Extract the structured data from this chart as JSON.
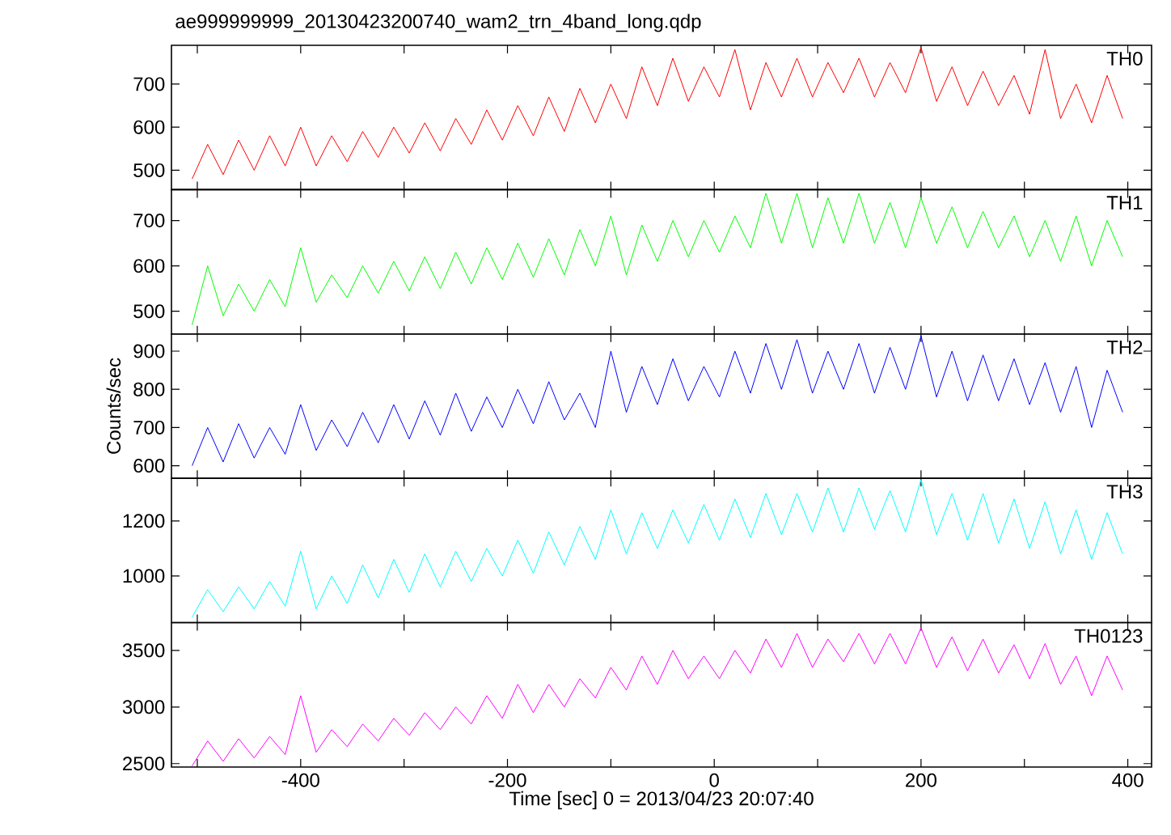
{
  "chart_data": [
    {
      "type": "line",
      "title": "ae999999999_20130423200740_wam2_trn_4band_long.qdp",
      "annotations": [
        "TH0"
      ],
      "tick_labels": "y",
      "xlim": [
        -525,
        423
      ],
      "ylim": [
        455,
        790
      ],
      "xticks": [
        {
          "value": -500,
          "label": null
        },
        {
          "value": -400,
          "label": null
        },
        {
          "value": -300,
          "label": null
        },
        {
          "value": -200,
          "label": null
        },
        {
          "value": -100,
          "label": null
        },
        {
          "value": 0,
          "label": null
        },
        {
          "value": 100,
          "label": null
        },
        {
          "value": 200,
          "label": null
        },
        {
          "value": 300,
          "label": null
        },
        {
          "value": 400,
          "label": null
        }
      ],
      "yticks": [
        500,
        600,
        700
      ],
      "series": [
        {
          "color": "#ff0000",
          "x": [
            -505,
            -490,
            -475,
            -460,
            -445,
            -430,
            -415,
            -400,
            -385,
            -370,
            -355,
            -340,
            -325,
            -310,
            -295,
            -280,
            -265,
            -250,
            -235,
            -220,
            -205,
            -190,
            -175,
            -160,
            -145,
            -130,
            -115,
            -100,
            -85,
            -70,
            -55,
            -40,
            -25,
            -10,
            5,
            20,
            35,
            50,
            65,
            80,
            95,
            110,
            125,
            140,
            155,
            170,
            185,
            200,
            215,
            230,
            245,
            260,
            275,
            290,
            305,
            320,
            335,
            350,
            365,
            380,
            395
          ],
          "values": [
            480,
            560,
            490,
            570,
            500,
            580,
            510,
            600,
            510,
            580,
            520,
            590,
            530,
            600,
            540,
            610,
            545,
            620,
            560,
            640,
            570,
            650,
            580,
            670,
            590,
            690,
            610,
            700,
            620,
            740,
            650,
            760,
            660,
            740,
            670,
            780,
            640,
            750,
            670,
            760,
            670,
            750,
            680,
            760,
            670,
            750,
            680,
            785,
            660,
            740,
            650,
            730,
            650,
            720,
            630,
            780,
            620,
            700,
            610,
            720,
            620
          ]
        }
      ]
    },
    {
      "type": "line",
      "annotations": [
        "TH1"
      ],
      "tick_labels": "y",
      "xlim": [
        -525,
        423
      ],
      "ylim": [
        450,
        768
      ],
      "xticks": [
        {
          "value": -500,
          "label": null
        },
        {
          "value": -400,
          "label": null
        },
        {
          "value": -300,
          "label": null
        },
        {
          "value": -200,
          "label": null
        },
        {
          "value": -100,
          "label": null
        },
        {
          "value": 0,
          "label": null
        },
        {
          "value": 100,
          "label": null
        },
        {
          "value": 200,
          "label": null
        },
        {
          "value": 300,
          "label": null
        },
        {
          "value": 400,
          "label": null
        }
      ],
      "yticks": [
        500,
        600,
        700
      ],
      "series": [
        {
          "color": "#00ff00",
          "x": [
            -505,
            -490,
            -475,
            -460,
            -445,
            -430,
            -415,
            -400,
            -385,
            -370,
            -355,
            -340,
            -325,
            -310,
            -295,
            -280,
            -265,
            -250,
            -235,
            -220,
            -205,
            -190,
            -175,
            -160,
            -145,
            -130,
            -115,
            -100,
            -85,
            -70,
            -55,
            -40,
            -25,
            -10,
            5,
            20,
            35,
            50,
            65,
            80,
            95,
            110,
            125,
            140,
            155,
            170,
            185,
            200,
            215,
            230,
            245,
            260,
            275,
            290,
            305,
            320,
            335,
            350,
            365,
            380,
            395
          ],
          "values": [
            470,
            600,
            490,
            560,
            500,
            570,
            510,
            640,
            520,
            580,
            530,
            600,
            540,
            610,
            545,
            620,
            550,
            630,
            560,
            640,
            570,
            650,
            575,
            660,
            580,
            680,
            600,
            710,
            580,
            690,
            610,
            700,
            620,
            700,
            630,
            710,
            640,
            760,
            650,
            760,
            640,
            750,
            650,
            760,
            650,
            740,
            640,
            750,
            650,
            730,
            640,
            720,
            640,
            710,
            620,
            700,
            610,
            710,
            600,
            700,
            620
          ]
        }
      ]
    },
    {
      "type": "line",
      "annotations": [
        "TH2"
      ],
      "ylabel": "Counts/sec",
      "tick_labels": "y",
      "xlim": [
        -525,
        423
      ],
      "ylim": [
        567,
        945
      ],
      "xticks": [
        {
          "value": -500,
          "label": null
        },
        {
          "value": -400,
          "label": null
        },
        {
          "value": -300,
          "label": null
        },
        {
          "value": -200,
          "label": null
        },
        {
          "value": -100,
          "label": null
        },
        {
          "value": 0,
          "label": null
        },
        {
          "value": 100,
          "label": null
        },
        {
          "value": 200,
          "label": null
        },
        {
          "value": 300,
          "label": null
        },
        {
          "value": 400,
          "label": null
        }
      ],
      "yticks": [
        600,
        700,
        800,
        900
      ],
      "series": [
        {
          "color": "#0000ff",
          "x": [
            -505,
            -490,
            -475,
            -460,
            -445,
            -430,
            -415,
            -400,
            -385,
            -370,
            -355,
            -340,
            -325,
            -310,
            -295,
            -280,
            -265,
            -250,
            -235,
            -220,
            -205,
            -190,
            -175,
            -160,
            -145,
            -130,
            -115,
            -100,
            -85,
            -70,
            -55,
            -40,
            -25,
            -10,
            5,
            20,
            35,
            50,
            65,
            80,
            95,
            110,
            125,
            140,
            155,
            170,
            185,
            200,
            215,
            230,
            245,
            260,
            275,
            290,
            305,
            320,
            335,
            350,
            365,
            380,
            395
          ],
          "values": [
            600,
            700,
            610,
            710,
            620,
            700,
            630,
            760,
            640,
            720,
            650,
            740,
            660,
            760,
            670,
            770,
            680,
            790,
            690,
            780,
            700,
            800,
            710,
            820,
            720,
            790,
            700,
            900,
            740,
            860,
            760,
            880,
            770,
            860,
            780,
            900,
            790,
            920,
            800,
            930,
            790,
            900,
            800,
            920,
            790,
            910,
            800,
            940,
            780,
            900,
            770,
            890,
            770,
            880,
            760,
            870,
            740,
            860,
            700,
            850,
            740
          ]
        }
      ]
    },
    {
      "type": "line",
      "annotations": [
        "TH3"
      ],
      "tick_labels": "y",
      "xlim": [
        -525,
        423
      ],
      "ylim": [
        830,
        1355
      ],
      "xticks": [
        {
          "value": -500,
          "label": null
        },
        {
          "value": -400,
          "label": null
        },
        {
          "value": -300,
          "label": null
        },
        {
          "value": -200,
          "label": null
        },
        {
          "value": -100,
          "label": null
        },
        {
          "value": 0,
          "label": null
        },
        {
          "value": 100,
          "label": null
        },
        {
          "value": 200,
          "label": null
        },
        {
          "value": 300,
          "label": null
        },
        {
          "value": 400,
          "label": null
        }
      ],
      "yticks": [
        1000,
        1200
      ],
      "series": [
        {
          "color": "#00ffff",
          "x": [
            -505,
            -490,
            -475,
            -460,
            -445,
            -430,
            -415,
            -400,
            -385,
            -370,
            -355,
            -340,
            -325,
            -310,
            -295,
            -280,
            -265,
            -250,
            -235,
            -220,
            -205,
            -190,
            -175,
            -160,
            -145,
            -130,
            -115,
            -100,
            -85,
            -70,
            -55,
            -40,
            -25,
            -10,
            5,
            20,
            35,
            50,
            65,
            80,
            95,
            110,
            125,
            140,
            155,
            170,
            185,
            200,
            215,
            230,
            245,
            260,
            275,
            290,
            305,
            320,
            335,
            350,
            365,
            380,
            395
          ],
          "values": [
            850,
            950,
            870,
            960,
            880,
            980,
            890,
            1090,
            880,
            1000,
            900,
            1040,
            920,
            1060,
            940,
            1080,
            960,
            1090,
            980,
            1100,
            1000,
            1130,
            1010,
            1160,
            1040,
            1180,
            1060,
            1240,
            1080,
            1230,
            1100,
            1240,
            1120,
            1260,
            1130,
            1280,
            1140,
            1300,
            1150,
            1300,
            1160,
            1320,
            1160,
            1320,
            1170,
            1310,
            1160,
            1350,
            1150,
            1300,
            1130,
            1300,
            1120,
            1280,
            1100,
            1270,
            1080,
            1240,
            1060,
            1230,
            1080
          ]
        }
      ]
    },
    {
      "type": "line",
      "annotations": [
        "TH0123"
      ],
      "xlabel": "Time [sec] 0 = 2013/04/23 20:07:40",
      "xlim": [
        -525,
        423
      ],
      "ylim": [
        2470,
        3745
      ],
      "xticks": [
        {
          "value": -500,
          "label": null
        },
        -400,
        {
          "value": -300,
          "label": null
        },
        -200,
        {
          "value": -100,
          "label": null
        },
        0,
        {
          "value": 100,
          "label": null
        },
        200,
        {
          "value": 300,
          "label": null
        },
        400
      ],
      "yticks": [
        2500,
        3000,
        3500
      ],
      "series": [
        {
          "color": "#ff00ff",
          "x": [
            -505,
            -490,
            -475,
            -460,
            -445,
            -430,
            -415,
            -400,
            -385,
            -370,
            -355,
            -340,
            -325,
            -310,
            -295,
            -280,
            -265,
            -250,
            -235,
            -220,
            -205,
            -190,
            -175,
            -160,
            -145,
            -130,
            -115,
            -100,
            -85,
            -70,
            -55,
            -40,
            -25,
            -10,
            5,
            20,
            35,
            50,
            65,
            80,
            95,
            110,
            125,
            140,
            155,
            170,
            185,
            200,
            215,
            230,
            245,
            260,
            275,
            290,
            305,
            320,
            335,
            350,
            365,
            380,
            395
          ],
          "values": [
            2480,
            2700,
            2520,
            2720,
            2550,
            2740,
            2580,
            3100,
            2600,
            2800,
            2650,
            2850,
            2700,
            2900,
            2750,
            2950,
            2800,
            3000,
            2850,
            3100,
            2900,
            3200,
            2950,
            3200,
            3000,
            3250,
            3080,
            3350,
            3150,
            3450,
            3200,
            3500,
            3250,
            3450,
            3250,
            3500,
            3300,
            3600,
            3350,
            3650,
            3350,
            3600,
            3400,
            3650,
            3380,
            3650,
            3380,
            3700,
            3350,
            3620,
            3320,
            3600,
            3300,
            3550,
            3250,
            3560,
            3200,
            3450,
            3100,
            3450,
            3150
          ]
        }
      ]
    }
  ]
}
